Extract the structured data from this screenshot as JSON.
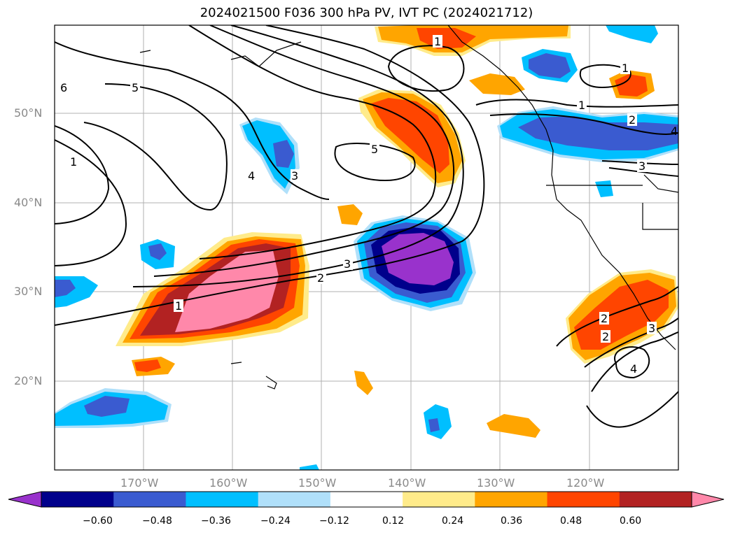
{
  "title": "2024021500 F036 300 hPa PV, IVT PC (2024021712)",
  "axes": {
    "lon_labels": [
      "170°W",
      "160°W",
      "150°W",
      "140°W",
      "130°W",
      "120°W"
    ],
    "lat_labels": [
      "50°N",
      "40°N",
      "30°N",
      "20°N"
    ]
  },
  "contour_labels": [
    "1",
    "1",
    "1",
    "1",
    "2",
    "2",
    "2",
    "3",
    "3",
    "3",
    "3",
    "4",
    "4",
    "4",
    "5",
    "5",
    "6",
    "1",
    "2"
  ],
  "colorbar": {
    "labels": [
      "−0.60",
      "−0.48",
      "−0.36",
      "−0.24",
      "−0.12",
      "0.12",
      "0.24",
      "0.36",
      "0.48",
      "0.60"
    ],
    "colors": [
      "#9932cc",
      "#00008b",
      "#3a5bd0",
      "#00bfff",
      "#b0e0fa",
      "#ffffff",
      "#ffeb8a",
      "#ffa500",
      "#ff4500",
      "#b22222",
      "#ff88aa"
    ]
  }
}
